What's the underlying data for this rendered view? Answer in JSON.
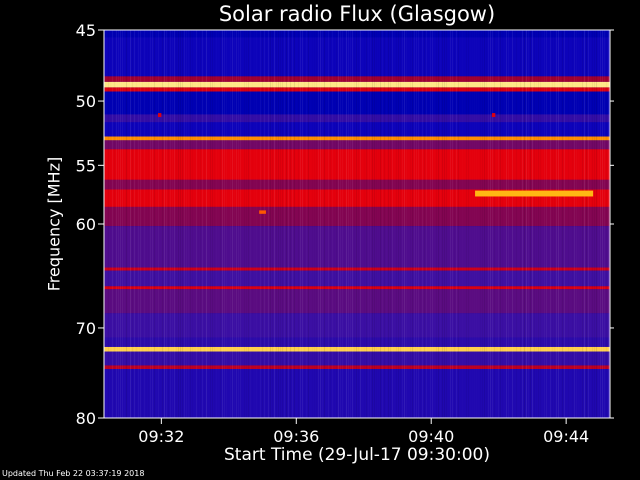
{
  "chart_data": {
    "type": "heatmap",
    "title": "Solar radio Flux (Glasgow)",
    "xlabel": "Start Time (29-Jul-17 09:30:00)",
    "ylabel": "Frequency [MHz]",
    "x_ticks": [
      "09:32",
      "09:36",
      "09:40",
      "09:44"
    ],
    "x_tick_minutes": [
      31.7,
      35.7,
      39.7,
      43.7
    ],
    "x_range_minutes": [
      30.0,
      45.0
    ],
    "y_ticks": [
      45,
      50,
      55,
      60,
      70,
      80
    ],
    "y_range": [
      45,
      80
    ],
    "y_scale": "log",
    "grid": false,
    "colormap": [
      "#000040",
      "#0000c0",
      "#4010a0",
      "#a00030",
      "#ff0000",
      "#ffb000",
      "#ffffc0"
    ],
    "bands": [
      {
        "f0": 45.0,
        "f1": 45.5,
        "level": 0.15
      },
      {
        "f0": 45.5,
        "f1": 48.2,
        "level": 0.2
      },
      {
        "f0": 48.2,
        "f1": 48.6,
        "level": 0.5
      },
      {
        "f0": 48.6,
        "f1": 49.0,
        "level": 0.95
      },
      {
        "f0": 49.0,
        "f1": 49.3,
        "level": 0.6
      },
      {
        "f0": 49.3,
        "f1": 51.0,
        "level": 0.15
      },
      {
        "f0": 51.0,
        "f1": 51.6,
        "level": 0.3
      },
      {
        "f0": 51.6,
        "f1": 52.7,
        "level": 0.2
      },
      {
        "f0": 52.7,
        "f1": 53.0,
        "level": 0.8
      },
      {
        "f0": 53.0,
        "f1": 53.7,
        "level": 0.42
      },
      {
        "f0": 53.7,
        "f1": 56.2,
        "level": 0.62
      },
      {
        "f0": 56.2,
        "f1": 57.0,
        "level": 0.45
      },
      {
        "f0": 57.0,
        "f1": 58.5,
        "level": 0.62
      },
      {
        "f0": 58.5,
        "f1": 60.2,
        "level": 0.45
      },
      {
        "f0": 60.2,
        "f1": 64.0,
        "level": 0.36
      },
      {
        "f0": 64.0,
        "f1": 64.3,
        "level": 0.58
      },
      {
        "f0": 64.3,
        "f1": 65.8,
        "level": 0.33
      },
      {
        "f0": 65.8,
        "f1": 66.1,
        "level": 0.6
      },
      {
        "f0": 66.1,
        "f1": 68.5,
        "level": 0.38
      },
      {
        "f0": 68.5,
        "f1": 71.0,
        "level": 0.32
      },
      {
        "f0": 71.0,
        "f1": 72.0,
        "level": 0.28
      },
      {
        "f0": 72.0,
        "f1": 72.5,
        "level": 0.9
      },
      {
        "f0": 72.5,
        "f1": 74.0,
        "level": 0.3
      },
      {
        "f0": 74.0,
        "f1": 74.4,
        "level": 0.55
      },
      {
        "f0": 74.4,
        "f1": 80.0,
        "level": 0.25
      }
    ],
    "bursts": [
      {
        "t0": 41.0,
        "t1": 44.5,
        "f0": 57.1,
        "f1": 57.6,
        "level": 0.85
      },
      {
        "t0": 34.6,
        "t1": 34.8,
        "f0": 58.8,
        "f1": 59.1,
        "level": 0.75
      },
      {
        "t0": 31.6,
        "t1": 31.7,
        "f0": 50.9,
        "f1": 51.2,
        "level": 0.6
      },
      {
        "t0": 41.5,
        "t1": 41.6,
        "f0": 50.9,
        "f1": 51.2,
        "level": 0.6
      }
    ],
    "footer": "Updated Thu Feb 22 03:37:19 2018"
  }
}
